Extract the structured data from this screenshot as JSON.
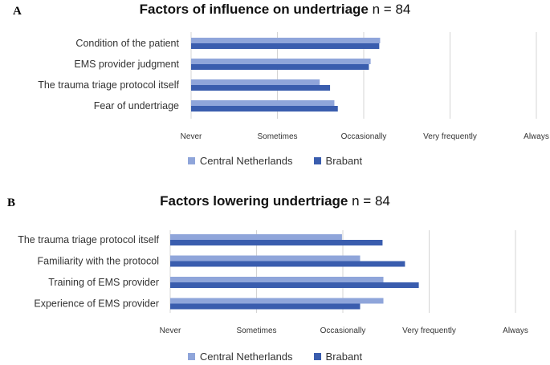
{
  "chart_data": [
    {
      "type": "bar",
      "panel": "A",
      "title": "Factors of influence on undertriage",
      "n_label": "n = 84",
      "categories": [
        "Condition of the patient",
        "EMS provider judgment",
        "The trauma triage protocol itself",
        "Fear of undertriage"
      ],
      "x_tick_labels": [
        "Never",
        "Sometimes",
        "Occasionally",
        "Very frequently",
        "Always"
      ],
      "xlim": [
        1,
        5
      ],
      "series": [
        {
          "name": "Central Netherlands",
          "color": "#8FA5DA",
          "values": [
            3.19,
            3.08,
            2.49,
            2.66
          ]
        },
        {
          "name": "Brabant",
          "color": "#3A5DAE",
          "values": [
            3.18,
            3.06,
            2.61,
            2.7
          ]
        }
      ],
      "grid": true,
      "legend": "bottom-center"
    },
    {
      "type": "bar",
      "panel": "B",
      "title": "Factors lowering undertriage",
      "n_label": "n = 84",
      "categories": [
        "The trauma triage protocol itself",
        "Familiarity with the protocol",
        "Training of EMS provider",
        "Experience of EMS provider"
      ],
      "x_tick_labels": [
        "Never",
        "Sometimes",
        "Occasionally",
        "Very frequently",
        "Always"
      ],
      "xlim": [
        1,
        5
      ],
      "series": [
        {
          "name": "Central Netherlands",
          "color": "#8FA5DA",
          "values": [
            2.99,
            3.2,
            3.47,
            3.47
          ]
        },
        {
          "name": "Brabant",
          "color": "#3A5DAE",
          "values": [
            3.46,
            3.72,
            3.88,
            3.2
          ]
        }
      ],
      "grid": true,
      "legend": "bottom-center"
    }
  ]
}
